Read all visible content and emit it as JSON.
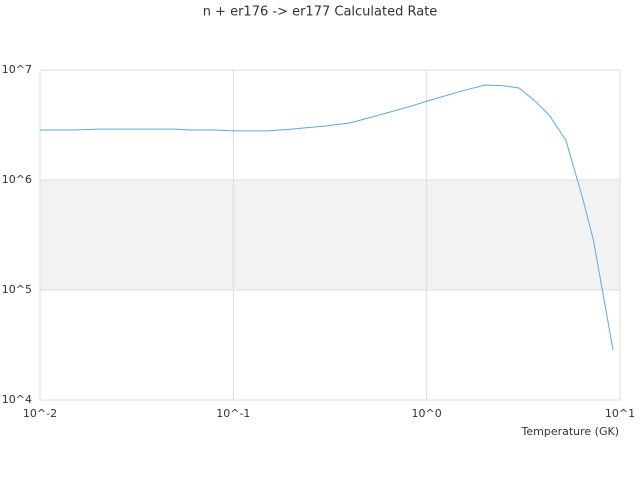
{
  "chart_data": {
    "type": "line",
    "title": "n + er176 -> er177 Calculated Rate",
    "x_label": "Temperature (GK)",
    "x": [
      0.01,
      0.015,
      0.02,
      0.03,
      0.05,
      0.06,
      0.08,
      0.1,
      0.15,
      0.2,
      0.3,
      0.4,
      0.5,
      0.6,
      0.8,
      1,
      1.5,
      2,
      2.5,
      3,
      3.6,
      4.3,
      5.25,
      6.4,
      7.3,
      9.2
    ],
    "series": [
      {
        "color": "#5aa9e6",
        "values": [
          2850000,
          2850000,
          2900000,
          2900000,
          2900000,
          2850000,
          2850000,
          2800000,
          2800000,
          2900000,
          3100000,
          3300000,
          3660000,
          4000000,
          4600000,
          5200000,
          6400000,
          7300000,
          7200000,
          6860000,
          5300000,
          3900000,
          2300000,
          690000,
          280000,
          28500
        ]
      }
    ],
    "xscale": "log",
    "yscale": "log",
    "xlim": [
      0.01,
      10
    ],
    "ylim": [
      10000,
      10000000
    ],
    "xticks": [
      {
        "value": 0.01,
        "label": "10^-2"
      },
      {
        "value": 0.1,
        "label": "10^-1"
      },
      {
        "value": 1,
        "label": "10^0"
      },
      {
        "value": 10,
        "label": "10^1"
      }
    ],
    "yticks": [
      {
        "value": 10000,
        "label": "10^4"
      },
      {
        "value": 100000,
        "label": "10^5"
      },
      {
        "value": 1000000,
        "label": "10^6"
      },
      {
        "value": 10000000,
        "label": "10^7"
      }
    ],
    "grid": true
  }
}
